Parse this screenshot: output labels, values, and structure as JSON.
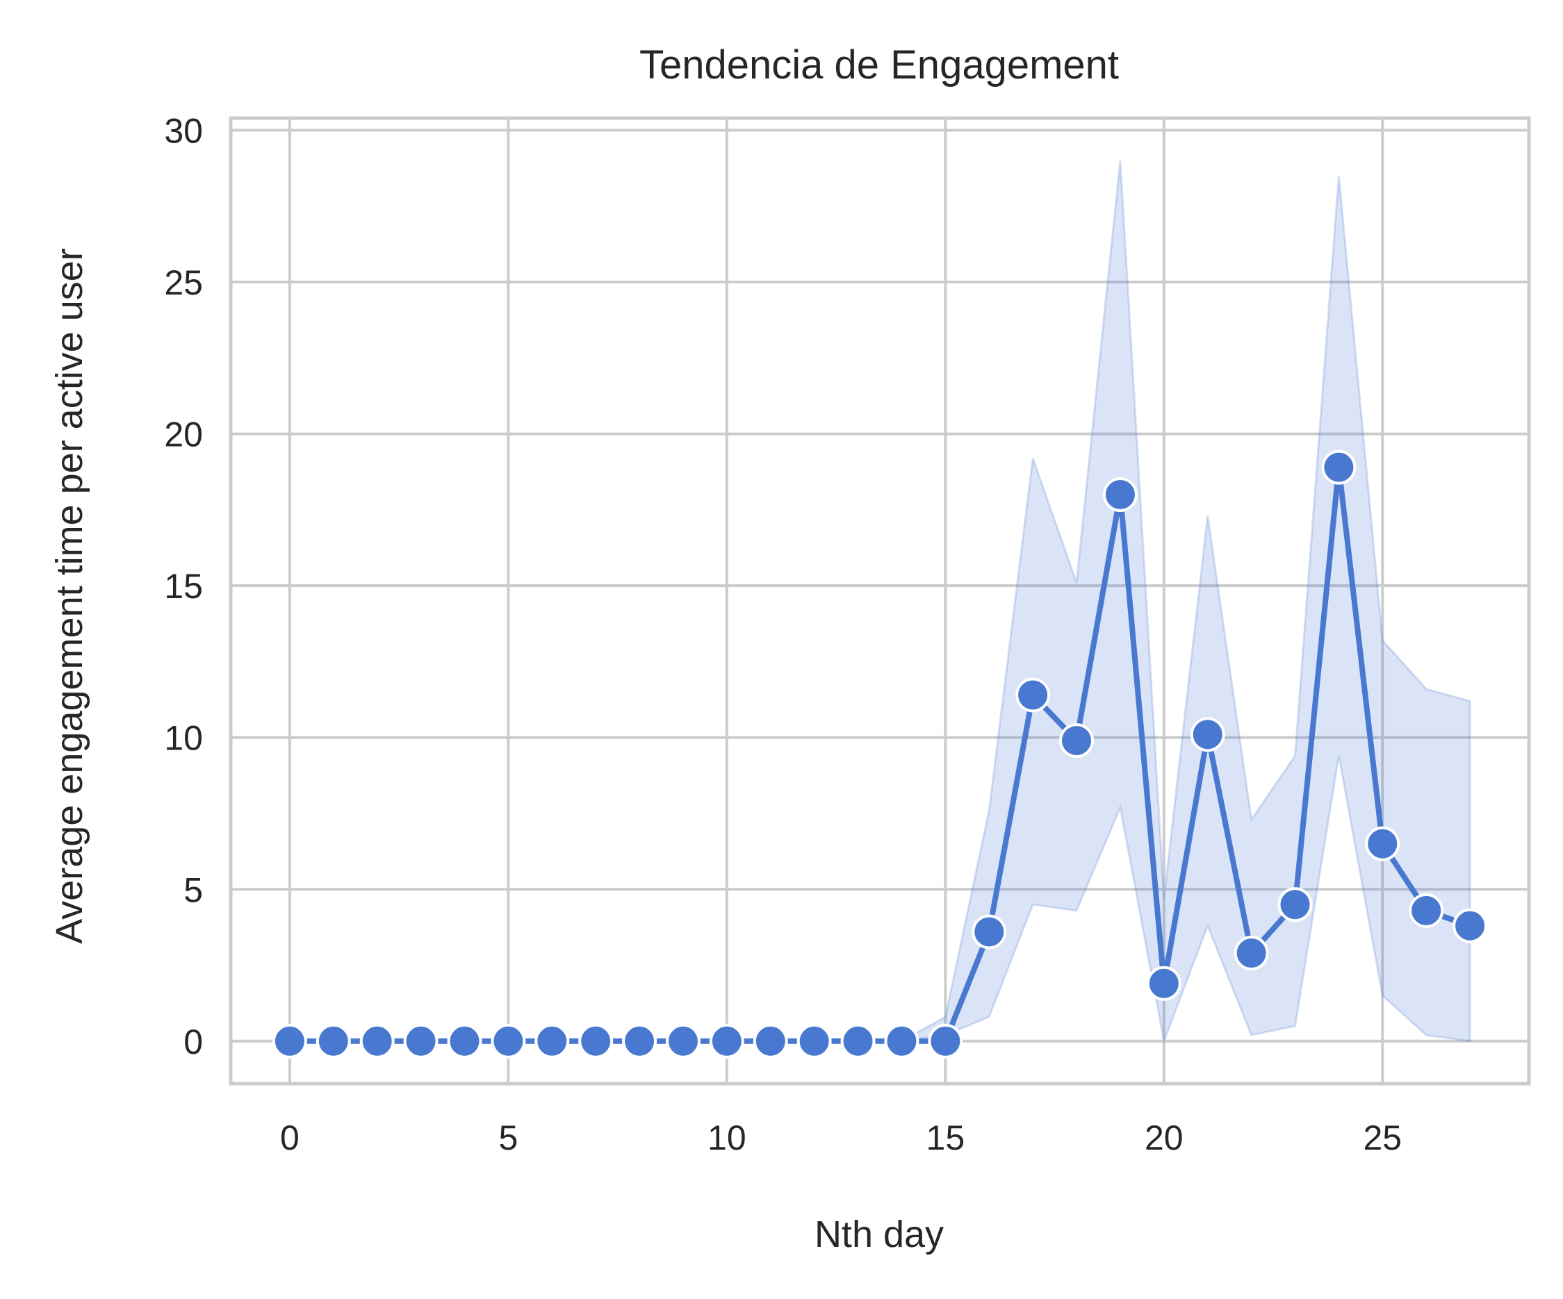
{
  "chart_data": {
    "type": "line",
    "title": "Tendencia de Engagement",
    "xlabel": "Nth day",
    "ylabel": "Average engagement time per active user",
    "xlim": [
      -1.35,
      28.35
    ],
    "ylim": [
      -1.4,
      30.4
    ],
    "xticks": [
      0,
      5,
      10,
      15,
      20,
      25
    ],
    "yticks": [
      0,
      5,
      10,
      15,
      20,
      25,
      30
    ],
    "grid": true,
    "colors": {
      "line": "#4878d0",
      "band": "#4878d0",
      "grid": "#cccccc",
      "spine": "#cccccc",
      "marker_edge": "#ffffff"
    },
    "x": [
      0,
      1,
      2,
      3,
      4,
      5,
      6,
      7,
      8,
      9,
      10,
      11,
      12,
      13,
      14,
      15,
      16,
      17,
      18,
      19,
      20,
      21,
      22,
      23,
      24,
      25,
      26,
      27
    ],
    "y": [
      0,
      0,
      0,
      0,
      0,
      0,
      0,
      0,
      0,
      0,
      0,
      0,
      0,
      0,
      0,
      0,
      3.6,
      11.4,
      9.9,
      18.0,
      1.9,
      10.1,
      2.9,
      4.5,
      18.9,
      6.5,
      4.3,
      3.8
    ],
    "ci_lower": [
      0,
      0,
      0,
      0,
      0,
      0,
      0,
      0,
      0,
      0,
      0,
      0,
      0,
      0,
      0,
      0.2,
      0.8,
      4.5,
      4.3,
      7.7,
      0,
      3.8,
      0.2,
      0.5,
      9.4,
      1.5,
      0.2,
      0
    ],
    "ci_upper": [
      0,
      0,
      0,
      0,
      0,
      0,
      0,
      0,
      0,
      0,
      0,
      0,
      0,
      0,
      0,
      0.8,
      7.6,
      19.2,
      15.1,
      29.0,
      4.7,
      17.3,
      7.3,
      9.4,
      28.5,
      13.2,
      11.6,
      11.2
    ]
  }
}
